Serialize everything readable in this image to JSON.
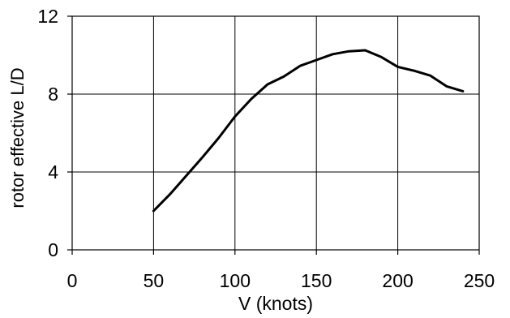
{
  "chart_data": {
    "type": "line",
    "title": "",
    "xlabel": "V (knots)",
    "ylabel": "rotor effective L/D",
    "xlim": [
      0,
      250
    ],
    "ylim": [
      0,
      12
    ],
    "xticks": [
      0,
      50,
      100,
      150,
      200,
      250
    ],
    "yticks": [
      0,
      4,
      8,
      12
    ],
    "xtick_labels": [
      "0",
      "50",
      "100",
      "150",
      "200",
      "250"
    ],
    "ytick_labels": [
      "0",
      "4",
      "8",
      "12"
    ],
    "grid": true,
    "legend": "none",
    "series": [
      {
        "color": "#000000",
        "x": [
          50,
          60,
          70,
          80,
          90,
          100,
          110,
          120,
          130,
          140,
          150,
          160,
          170,
          180,
          190,
          200,
          210,
          220,
          230,
          240
        ],
        "y": [
          2.0,
          2.85,
          3.8,
          4.75,
          5.75,
          6.85,
          7.75,
          8.5,
          8.9,
          9.45,
          9.75,
          10.05,
          10.2,
          10.25,
          9.9,
          9.4,
          9.2,
          8.95,
          8.4,
          8.15
        ]
      }
    ]
  }
}
